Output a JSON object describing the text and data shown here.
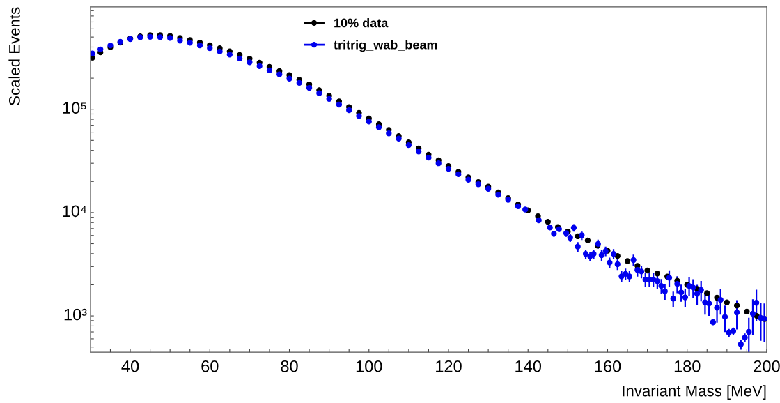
{
  "chart_data": {
    "type": "scatter",
    "xlabel": "Invariant Mass [MeV]",
    "ylabel": "Scaled Events",
    "log": "y",
    "grid": false,
    "legend": "top",
    "marker": "circle",
    "xlim": [
      30,
      200
    ],
    "xticks": [
      {
        "value": 35,
        "label": null
      },
      40,
      {
        "value": 45,
        "label": null
      },
      {
        "value": 50,
        "label": null
      },
      {
        "value": 55,
        "label": null
      },
      60,
      {
        "value": 65,
        "label": null
      },
      {
        "value": 70,
        "label": null
      },
      {
        "value": 75,
        "label": null
      },
      80,
      {
        "value": 85,
        "label": null
      },
      {
        "value": 90,
        "label": null
      },
      {
        "value": 95,
        "label": null
      },
      100,
      {
        "value": 105,
        "label": null
      },
      {
        "value": 110,
        "label": null
      },
      {
        "value": 115,
        "label": null
      },
      120,
      {
        "value": 125,
        "label": null
      },
      {
        "value": 130,
        "label": null
      },
      {
        "value": 135,
        "label": null
      },
      140,
      {
        "value": 145,
        "label": null
      },
      {
        "value": 150,
        "label": null
      },
      {
        "value": 155,
        "label": null
      },
      160,
      {
        "value": 165,
        "label": null
      },
      {
        "value": 170,
        "label": null
      },
      {
        "value": 175,
        "label": null
      },
      180,
      {
        "value": 185,
        "label": null
      },
      {
        "value": 190,
        "label": null
      },
      {
        "value": 195,
        "label": null
      },
      200
    ],
    "ylim": [
      445,
      980000
    ],
    "yticks": [
      {
        "value": 500,
        "label": null
      },
      {
        "value": 600,
        "label": null
      },
      {
        "value": 700,
        "label": null
      },
      {
        "value": 800,
        "label": null
      },
      {
        "value": 900,
        "label": null
      },
      {
        "value": 1000,
        "label": "10³"
      },
      {
        "value": 2000,
        "label": null
      },
      {
        "value": 3000,
        "label": null
      },
      {
        "value": 4000,
        "label": null
      },
      {
        "value": 5000,
        "label": null
      },
      {
        "value": 6000,
        "label": null
      },
      {
        "value": 7000,
        "label": null
      },
      {
        "value": 8000,
        "label": null
      },
      {
        "value": 9000,
        "label": null
      },
      {
        "value": 10000,
        "label": "10⁴"
      },
      {
        "value": 20000,
        "label": null
      },
      {
        "value": 30000,
        "label": null
      },
      {
        "value": 40000,
        "label": null
      },
      {
        "value": 50000,
        "label": null
      },
      {
        "value": 60000,
        "label": null
      },
      {
        "value": 70000,
        "label": null
      },
      {
        "value": 80000,
        "label": null
      },
      {
        "value": 90000,
        "label": null
      },
      {
        "value": 100000,
        "label": "10⁵"
      },
      {
        "value": 200000,
        "label": null
      },
      {
        "value": 300000,
        "label": null
      },
      {
        "value": 400000,
        "label": null
      },
      {
        "value": 500000,
        "label": null
      },
      {
        "value": 600000,
        "label": null
      },
      {
        "value": 700000,
        "label": null
      },
      {
        "value": 800000,
        "label": null
      },
      {
        "value": 900000,
        "label": null
      }
    ],
    "series": [
      {
        "name": "10% data",
        "color": "#000000",
        "x": [
          30.5,
          32.5,
          35,
          37.5,
          40,
          42.5,
          45,
          47.5,
          50,
          52.5,
          55,
          57.5,
          60,
          62.5,
          65,
          67.5,
          70,
          72.5,
          75,
          77.5,
          80,
          82.5,
          85,
          87.5,
          90,
          92.5,
          95,
          97.5,
          100,
          102.5,
          105,
          107.5,
          110,
          112.5,
          115,
          117.5,
          120,
          122.5,
          125,
          127.5,
          130,
          132.5,
          135,
          137.5,
          140,
          142.5,
          145,
          147.5,
          150,
          152.5,
          155,
          157.5,
          160,
          162.5,
          165,
          167.5,
          170,
          172.5,
          175,
          177.5,
          180,
          182.5,
          185,
          187.5,
          190,
          192.5,
          195,
          197.5,
          199.5
        ],
        "values": [
          316000,
          355000,
          398000,
          442000,
          484000,
          507000,
          522000,
          521000,
          514000,
          490000,
          468000,
          442000,
          417000,
          389000,
          363000,
          335000,
          309000,
          282000,
          257000,
          234000,
          214000,
          193000,
          174000,
          153000,
          135000,
          119000,
          105000,
          92300,
          81300,
          71600,
          63100,
          55000,
          47900,
          41700,
          36300,
          32000,
          28200,
          24800,
          21900,
          19700,
          17800,
          15700,
          13800,
          12000,
          10500,
          9230,
          8130,
          7240,
          6530,
          5890,
          5370,
          4790,
          4270,
          3800,
          3390,
          3050,
          2750,
          2570,
          2400,
          2190,
          2000,
          1820,
          1660,
          1500,
          1350,
          1260,
          1100,
          1000,
          933
        ]
      },
      {
        "name": "tritrig_wab_beam",
        "color": "#0000ee",
        "x": [
          30.5,
          32.5,
          35,
          37.5,
          40,
          42.5,
          45,
          47.5,
          50,
          52.5,
          55,
          57.5,
          60,
          62.5,
          65,
          67.5,
          70,
          72.5,
          75,
          77.5,
          80,
          82.5,
          85,
          87.5,
          90,
          92.5,
          95,
          97.5,
          100,
          102.5,
          105,
          107.5,
          110,
          112.5,
          115,
          117.5,
          120,
          122.5,
          125,
          127.5,
          130,
          132.5,
          135,
          137.5,
          139.3,
          142.7,
          145.5,
          146.5,
          147.8,
          149.6,
          150.6,
          151.5,
          152.5,
          153.5,
          154.5,
          155.6,
          156.5,
          157.6,
          158.5,
          159.5,
          160.5,
          161.5,
          162.5,
          163.5,
          164.5,
          165.5,
          166.5,
          167.5,
          168.5,
          169.5,
          170.5,
          171.5,
          172.5,
          173.5,
          174.4,
          175.5,
          176.5,
          177.5,
          178.5,
          179.5,
          180.5,
          181.5,
          182.5,
          183.5,
          184.5,
          185.5,
          186.5,
          187.5,
          188.4,
          189.5,
          190.5,
          191.6,
          192.5,
          193.5,
          194.5,
          195.5,
          196.5,
          197.4,
          198.5,
          199.4
        ],
        "values": [
          347000,
          380000,
          415000,
          450000,
          478000,
          497000,
          502000,
          498000,
          490000,
          462000,
          440000,
          415000,
          390000,
          362000,
          338000,
          310000,
          285000,
          262000,
          238000,
          218000,
          198000,
          180000,
          161000,
          143000,
          126000,
          111000,
          98000,
          86000,
          76000,
          67000,
          58500,
          52000,
          45000,
          39000,
          34000,
          30000,
          26500,
          23500,
          20800,
          18800,
          17000,
          14900,
          13300,
          11500,
          10700,
          8410,
          7160,
          6240,
          6920,
          6310,
          5700,
          7130,
          4680,
          6030,
          3980,
          3770,
          3980,
          4970,
          3870,
          4230,
          3280,
          3980,
          3160,
          2410,
          2550,
          2410,
          3470,
          2780,
          2690,
          2240,
          2240,
          2240,
          2170,
          1950,
          1730,
          2340,
          1470,
          2040,
          1690,
          1510,
          1950,
          1880,
          1640,
          1780,
          1350,
          1320,
          871,
          1200,
          1430,
          977,
          687,
          713,
          1080,
          531,
          617,
          700,
          1050,
          1340,
          955,
          940
        ],
        "errors": [
          null,
          null,
          null,
          null,
          null,
          null,
          null,
          null,
          null,
          null,
          null,
          null,
          null,
          null,
          null,
          null,
          null,
          null,
          null,
          null,
          null,
          null,
          null,
          null,
          null,
          null,
          null,
          null,
          null,
          null,
          null,
          null,
          null,
          null,
          null,
          null,
          null,
          null,
          null,
          null,
          null,
          null,
          null,
          null,
          400,
          400,
          400,
          400,
          400,
          500,
          500,
          600,
          500,
          600,
          400,
          400,
          400,
          500,
          450,
          450,
          380,
          450,
          380,
          300,
          320,
          300,
          450,
          380,
          380,
          340,
          340,
          340,
          340,
          320,
          300,
          420,
          250,
          380,
          320,
          300,
          400,
          380,
          360,
          400,
          320,
          320,
          60,
          340,
          400,
          280,
          60,
          60,
          340,
          60,
          60,
          260,
          400,
          450,
          380,
          380
        ]
      }
    ]
  }
}
